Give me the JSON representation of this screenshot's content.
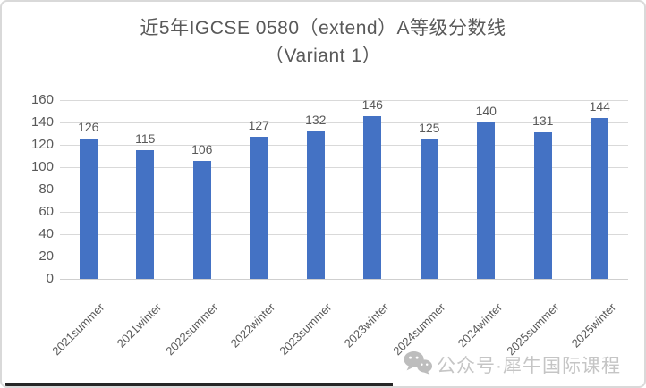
{
  "card": {
    "title_line1": "近5年IGCSE 0580（extend）A等级分数线",
    "title_line2": "（Variant 1）"
  },
  "chart_data": {
    "type": "bar",
    "title": "近5年IGCSE 0580（extend）A等级分数线（Variant 1）",
    "categories": [
      "2021summer",
      "2021winter",
      "2022summer",
      "2022winter",
      "2023summer",
      "2023winter",
      "2024summer",
      "2024winter",
      "2025summer",
      "2025winter"
    ],
    "values": [
      126,
      115,
      106,
      127,
      132,
      146,
      125,
      140,
      131,
      144
    ],
    "data_labels": true,
    "xlabel": "",
    "ylabel": "",
    "ylim": [
      0,
      160
    ],
    "yticks": [
      0,
      20,
      40,
      60,
      80,
      100,
      120,
      140,
      160
    ],
    "grid": true,
    "legend": "none",
    "colors": {
      "bar": "#4472c4",
      "gridline": "#d9d9d9",
      "text": "#595959"
    }
  },
  "watermark": {
    "icon": "wechat-icon",
    "text": "公众号·犀牛国际课程"
  }
}
